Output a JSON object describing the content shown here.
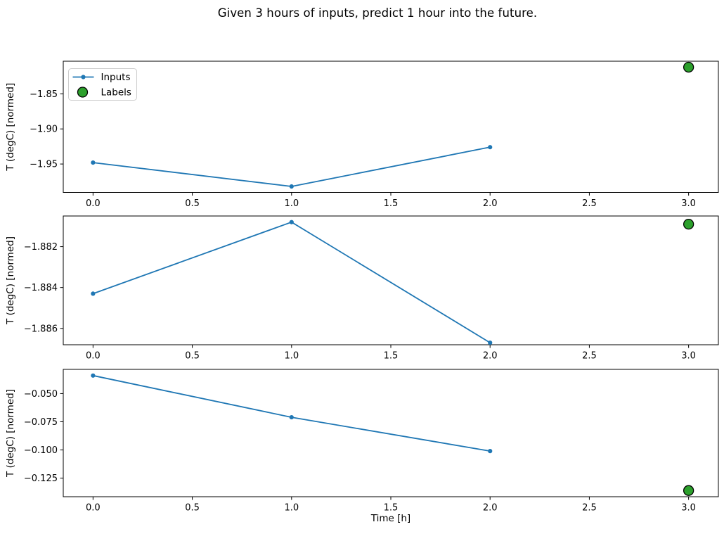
{
  "figure": {
    "title": "Given 3 hours of inputs, predict 1 hour into the future.",
    "background": "#ffffff",
    "colors": {
      "inputs_line": "#1f77b4",
      "labels_fill": "#2ca02c",
      "labels_edge": "#000000",
      "axis": "#000000",
      "legend_border": "#cccccc"
    }
  },
  "legend": {
    "position": "upper-left",
    "items": [
      {
        "label": "Inputs",
        "marker": "line-dot",
        "color": "#1f77b4"
      },
      {
        "label": "Labels",
        "marker": "circle",
        "fill": "#2ca02c",
        "edge": "#000000"
      }
    ]
  },
  "chart_data": [
    {
      "type": "line",
      "title": "",
      "xlabel": "",
      "ylabel": "T (degC) [normed]",
      "x": [
        0,
        1,
        2
      ],
      "series": [
        {
          "name": "Inputs",
          "values": [
            -1.948,
            -1.982,
            -1.926
          ],
          "color": "#1f77b4",
          "marker": "dot"
        }
      ],
      "labels_point": {
        "name": "Labels",
        "x": 3,
        "value": -1.812,
        "fill": "#2ca02c",
        "edge": "#000000"
      },
      "xlim": [
        -0.15,
        3.15
      ],
      "ylim": [
        -1.9905,
        -1.8035
      ],
      "xtick_values": [
        0.0,
        0.5,
        1.0,
        1.5,
        2.0,
        2.5,
        3.0
      ],
      "xtick_labels": [
        "0.0",
        "0.5",
        "1.0",
        "1.5",
        "2.0",
        "2.5",
        "3.0"
      ],
      "ytick_values": [
        -1.85,
        -1.9,
        -1.95
      ],
      "ytick_labels": [
        "−1.85",
        "−1.90",
        "−1.95"
      ],
      "legend": [
        "Inputs",
        "Labels"
      ],
      "grid": false
    },
    {
      "type": "line",
      "title": "",
      "xlabel": "",
      "ylabel": "T (degC) [normed]",
      "x": [
        0,
        1,
        2
      ],
      "series": [
        {
          "name": "Inputs",
          "values": [
            -1.8843,
            -1.8808,
            -1.8867
          ],
          "color": "#1f77b4",
          "marker": "dot"
        }
      ],
      "labels_point": {
        "name": "Labels",
        "x": 3,
        "value": -1.8809,
        "fill": "#2ca02c",
        "edge": "#000000"
      },
      "xlim": [
        -0.15,
        3.15
      ],
      "ylim": [
        -1.8868,
        -1.8805
      ],
      "xtick_values": [
        0.0,
        0.5,
        1.0,
        1.5,
        2.0,
        2.5,
        3.0
      ],
      "xtick_labels": [
        "0.0",
        "0.5",
        "1.0",
        "1.5",
        "2.0",
        "2.5",
        "3.0"
      ],
      "ytick_values": [
        -1.882,
        -1.884,
        -1.886
      ],
      "ytick_labels": [
        "−1.882",
        "−1.884",
        "−1.886"
      ],
      "legend": null,
      "grid": false
    },
    {
      "type": "line",
      "title": "",
      "xlabel": "Time [h]",
      "ylabel": "T (degC) [normed]",
      "x": [
        0,
        1,
        2
      ],
      "series": [
        {
          "name": "Inputs",
          "values": [
            -0.034,
            -0.071,
            -0.101
          ],
          "color": "#1f77b4",
          "marker": "dot"
        }
      ],
      "labels_point": {
        "name": "Labels",
        "x": 3,
        "value": -0.136,
        "fill": "#2ca02c",
        "edge": "#000000"
      },
      "xlim": [
        -0.15,
        3.15
      ],
      "ylim": [
        -0.1415,
        -0.0285
      ],
      "xtick_values": [
        0.0,
        0.5,
        1.0,
        1.5,
        2.0,
        2.5,
        3.0
      ],
      "xtick_labels": [
        "0.0",
        "0.5",
        "1.0",
        "1.5",
        "2.0",
        "2.5",
        "3.0"
      ],
      "ytick_values": [
        -0.05,
        -0.075,
        -0.1,
        -0.125
      ],
      "ytick_labels": [
        "−0.050",
        "−0.075",
        "−0.100",
        "−0.125"
      ],
      "legend": null,
      "grid": false
    }
  ]
}
